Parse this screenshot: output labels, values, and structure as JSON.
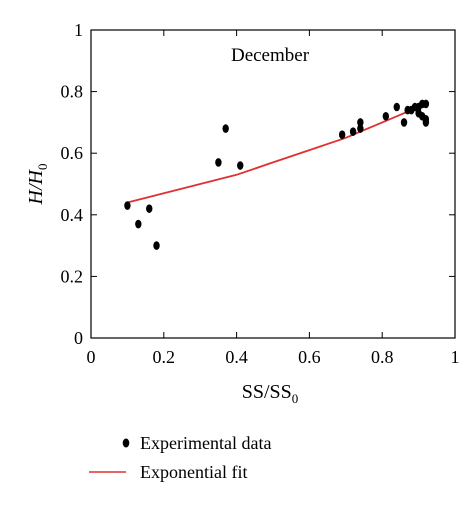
{
  "chart_data": {
    "type": "scatter",
    "title": "December",
    "xlabel": {
      "main": "SS/SS",
      "sub": "0"
    },
    "ylabel": {
      "main": "H/H",
      "sub": "0"
    },
    "xlim": [
      0,
      1
    ],
    "ylim": [
      0,
      1
    ],
    "xticks": [
      "0",
      "0.2",
      "0.4",
      "0.6",
      "0.8",
      "1"
    ],
    "yticks": [
      "0",
      "0.2",
      "0.4",
      "0.6",
      "0.8",
      "1"
    ],
    "grid": false,
    "legend_position": "bottom-left, below the plot",
    "series": [
      {
        "name": "Experimental data",
        "kind": "points",
        "color": "#000000",
        "x": [
          0.1,
          0.13,
          0.16,
          0.18,
          0.35,
          0.37,
          0.41,
          0.69,
          0.72,
          0.74,
          0.74,
          0.81,
          0.84,
          0.86,
          0.87,
          0.88,
          0.89,
          0.9,
          0.9,
          0.91,
          0.91,
          0.92,
          0.92,
          0.92
        ],
        "y": [
          0.43,
          0.37,
          0.42,
          0.3,
          0.57,
          0.68,
          0.56,
          0.66,
          0.67,
          0.68,
          0.7,
          0.72,
          0.75,
          0.7,
          0.74,
          0.74,
          0.75,
          0.73,
          0.75,
          0.72,
          0.76,
          0.71,
          0.7,
          0.76
        ]
      },
      {
        "name": "Exponential fit",
        "kind": "line",
        "color": "#e03030",
        "x": [
          0.1,
          0.2,
          0.3,
          0.4,
          0.5,
          0.6,
          0.7,
          0.8,
          0.92
        ],
        "y": [
          0.44,
          0.47,
          0.5,
          0.53,
          0.57,
          0.61,
          0.65,
          0.7,
          0.76
        ]
      }
    ]
  }
}
